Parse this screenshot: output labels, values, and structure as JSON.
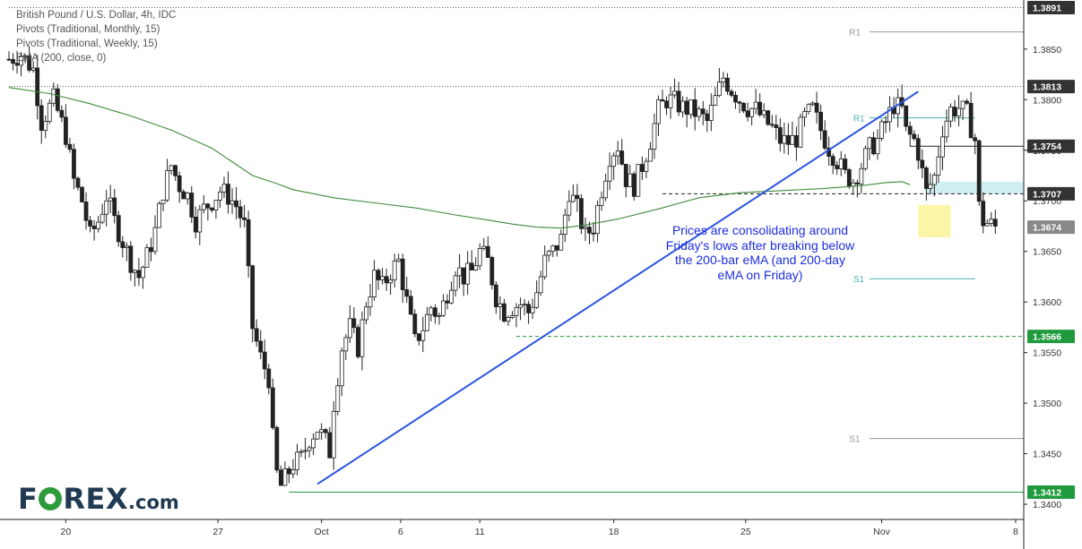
{
  "legend": {
    "line1": "British Pound / U.S. Dollar, 4h, IDC",
    "line2": "Pivots (Traditional, Monthly, 15)",
    "line3": "Pivots (Traditional, Weekly, 15)",
    "line4": "EMA (200, close, 0)"
  },
  "annotation": "Prices are consolidating around Friday's lows after breaking below the 200-bar eMA (and 200-day eMA on Friday)",
  "logo": {
    "text_a": "F",
    "text_b": "REX",
    "suffix": ".com",
    "ring_color": "#2c9b3b"
  },
  "chart_data": {
    "type": "candlestick",
    "y_range": [
      1.3385,
      1.3895
    ],
    "x_range": [
      0,
      250
    ],
    "y_ticks": [
      "1.3850",
      "1.3800",
      "1.3750",
      "1.3700",
      "1.3650",
      "1.3600",
      "1.3550",
      "1.3500",
      "1.3450",
      "1.3400"
    ],
    "x_ticks": [
      {
        "label": "20",
        "x": 14
      },
      {
        "label": "27",
        "x": 51.5
      },
      {
        "label": "Oct",
        "x": 77
      },
      {
        "label": "6",
        "x": 96.5
      },
      {
        "label": "11",
        "x": 116
      },
      {
        "label": "18",
        "x": 149
      },
      {
        "label": "25",
        "x": 181.5
      },
      {
        "label": "Nov",
        "x": 215
      },
      {
        "label": "8",
        "x": 248
      }
    ],
    "price_tags": [
      {
        "label": "1.3891",
        "value": 1.3891,
        "color": "#333333"
      },
      {
        "label": "1.3813",
        "value": 1.3813,
        "color": "#333333"
      },
      {
        "label": "1.3754",
        "value": 1.3754,
        "color": "#333333"
      },
      {
        "label": "1.3707",
        "value": 1.3707,
        "color": "#333333"
      },
      {
        "label": "1.3674",
        "value": 1.3674,
        "color": "#888888"
      },
      {
        "label": "1.3566",
        "value": 1.3566,
        "color": "#1f9a3c"
      },
      {
        "label": "1.3412",
        "value": 1.3412,
        "color": "#1f9a3c"
      }
    ],
    "pivot_labels": [
      {
        "label": "R1",
        "value": 1.3867,
        "x": 207,
        "color": "#999999"
      },
      {
        "label": "R1",
        "value": 1.3782,
        "x": 208,
        "color": "#4cb2b2"
      },
      {
        "label": "S1",
        "value": 1.3623,
        "x": 208,
        "color": "#4cb2b2"
      },
      {
        "label": "S1",
        "value": 1.3465,
        "x": 207,
        "color": "#999999"
      }
    ],
    "series_points": {
      "close_path": [
        [
          0,
          1.384
        ],
        [
          3,
          1.3845
        ],
        [
          6,
          1.383
        ],
        [
          8,
          1.3778
        ],
        [
          11,
          1.38
        ],
        [
          14,
          1.3765
        ],
        [
          16,
          1.372
        ],
        [
          18,
          1.37
        ],
        [
          20,
          1.3665
        ],
        [
          22,
          1.368
        ],
        [
          24,
          1.3705
        ],
        [
          26,
          1.368
        ],
        [
          28,
          1.366
        ],
        [
          30,
          1.364
        ],
        [
          32,
          1.3625
        ],
        [
          34,
          1.3645
        ],
        [
          36,
          1.367
        ],
        [
          38,
          1.371
        ],
        [
          40,
          1.3735
        ],
        [
          42,
          1.3715
        ],
        [
          44,
          1.3705
        ],
        [
          46,
          1.368
        ],
        [
          48,
          1.3692
        ],
        [
          50,
          1.37
        ],
        [
          52,
          1.371
        ],
        [
          54,
          1.3705
        ],
        [
          56,
          1.3695
        ],
        [
          58,
          1.3675
        ],
        [
          60,
          1.3575
        ],
        [
          62,
          1.3545
        ],
        [
          64,
          1.3525
        ],
        [
          65,
          1.3465
        ],
        [
          66,
          1.343
        ],
        [
          67,
          1.3418
        ],
        [
          68,
          1.3425
        ],
        [
          70,
          1.344
        ],
        [
          72,
          1.3445
        ],
        [
          74,
          1.3465
        ],
        [
          76,
          1.3475
        ],
        [
          78,
          1.3462
        ],
        [
          79,
          1.3452
        ],
        [
          80,
          1.35
        ],
        [
          82,
          1.3555
        ],
        [
          84,
          1.3575
        ],
        [
          86,
          1.3555
        ],
        [
          88,
          1.36
        ],
        [
          90,
          1.3625
        ],
        [
          92,
          1.3615
        ],
        [
          94,
          1.363
        ],
        [
          96,
          1.364
        ],
        [
          98,
          1.36
        ],
        [
          100,
          1.356
        ],
        [
          102,
          1.3575
        ],
        [
          104,
          1.3595
        ],
        [
          106,
          1.3585
        ],
        [
          108,
          1.361
        ],
        [
          110,
          1.3635
        ],
        [
          112,
          1.3625
        ],
        [
          114,
          1.363
        ],
        [
          116,
          1.365
        ],
        [
          118,
          1.364
        ],
        [
          120,
          1.3605
        ],
        [
          122,
          1.359
        ],
        [
          124,
          1.3595
        ],
        [
          126,
          1.3598
        ],
        [
          128,
          1.359
        ],
        [
          130,
          1.361
        ],
        [
          132,
          1.364
        ],
        [
          134,
          1.365
        ],
        [
          136,
          1.3662
        ],
        [
          138,
          1.371
        ],
        [
          140,
          1.3692
        ],
        [
          142,
          1.3665
        ],
        [
          144,
          1.3675
        ],
        [
          146,
          1.3712
        ],
        [
          148,
          1.3745
        ],
        [
          150,
          1.3755
        ],
        [
          152,
          1.3722
        ],
        [
          154,
          1.3715
        ],
        [
          156,
          1.3735
        ],
        [
          158,
          1.376
        ],
        [
          160,
          1.379
        ],
        [
          162,
          1.38
        ],
        [
          164,
          1.3798
        ],
        [
          166,
          1.3792
        ],
        [
          168,
          1.379
        ],
        [
          170,
          1.3785
        ],
        [
          172,
          1.3778
        ],
        [
          174,
          1.38
        ],
        [
          176,
          1.3822
        ],
        [
          178,
          1.381
        ],
        [
          180,
          1.38
        ],
        [
          182,
          1.3792
        ],
        [
          184,
          1.379
        ],
        [
          186,
          1.378
        ],
        [
          188,
          1.3772
        ],
        [
          190,
          1.376
        ],
        [
          192,
          1.3758
        ],
        [
          194,
          1.3762
        ],
        [
          196,
          1.3782
        ],
        [
          198,
          1.379
        ],
        [
          200,
          1.377
        ],
        [
          202,
          1.3752
        ],
        [
          204,
          1.374
        ],
        [
          206,
          1.3725
        ],
        [
          208,
          1.372
        ],
        [
          210,
          1.3735
        ],
        [
          212,
          1.3752
        ],
        [
          214,
          1.376
        ],
        [
          216,
          1.3778
        ],
        [
          218,
          1.3795
        ],
        [
          220,
          1.379
        ],
        [
          221,
          1.3768
        ],
        [
          223,
          1.376
        ],
        [
          224,
          1.3748
        ],
        [
          226,
          1.3708
        ],
        [
          228,
          1.3724
        ],
        [
          230,
          1.3772
        ],
        [
          232,
          1.379
        ],
        [
          234,
          1.3792
        ],
        [
          236,
          1.3786
        ],
        [
          238,
          1.376
        ],
        [
          239,
          1.3694
        ],
        [
          240,
          1.368
        ],
        [
          242,
          1.3676
        ],
        [
          243,
          1.3674
        ]
      ],
      "ema_200": [
        [
          0,
          1.3812
        ],
        [
          10,
          1.3806
        ],
        [
          20,
          1.3796
        ],
        [
          30,
          1.3784
        ],
        [
          40,
          1.377
        ],
        [
          50,
          1.3752
        ],
        [
          60,
          1.3725
        ],
        [
          66,
          1.3717
        ],
        [
          70,
          1.3711
        ],
        [
          80,
          1.3703
        ],
        [
          90,
          1.3698
        ],
        [
          100,
          1.3693
        ],
        [
          110,
          1.3686
        ],
        [
          118,
          1.3681
        ],
        [
          124,
          1.3677
        ],
        [
          130,
          1.3674
        ],
        [
          136,
          1.3673
        ],
        [
          142,
          1.3676
        ],
        [
          150,
          1.3682
        ],
        [
          160,
          1.3692
        ],
        [
          170,
          1.3703
        ],
        [
          180,
          1.3708
        ],
        [
          190,
          1.371
        ],
        [
          200,
          1.3712
        ],
        [
          210,
          1.3715
        ],
        [
          216,
          1.3718
        ],
        [
          220,
          1.3719
        ],
        [
          222,
          1.3716
        ]
      ]
    },
    "trendline": {
      "from": [
        76,
        1.342
      ],
      "to": [
        224,
        1.3808
      ]
    },
    "levels": [
      {
        "value": 1.3891,
        "style": "dotted",
        "from": 0,
        "to": 250
      },
      {
        "value": 1.3813,
        "style": "dotted",
        "from": 0,
        "to": 250
      },
      {
        "value": 1.3867,
        "style": "solid",
        "from": 212,
        "to": 250
      },
      {
        "value": 1.3782,
        "style": "solid",
        "from": 212,
        "to": 238
      },
      {
        "value": 1.3754,
        "style": "solid",
        "from": 222,
        "to": 250
      },
      {
        "value": 1.3707,
        "style": "dashed",
        "from": 161,
        "to": 250
      },
      {
        "value": 1.3623,
        "style": "solid",
        "from": 212,
        "to": 238
      },
      {
        "value": 1.3566,
        "style": "dashed",
        "from": 125,
        "to": 250
      },
      {
        "value": 1.3465,
        "style": "solid",
        "from": 212,
        "to": 250
      },
      {
        "value": 1.3412,
        "style": "solid",
        "from": 69,
        "to": 250
      }
    ],
    "zones": [
      {
        "from_x": 226,
        "to_x": 250,
        "y_top": 1.3719,
        "y_bottom": 1.3707,
        "color": "#cfeef0"
      },
      {
        "from_x": 224,
        "to_x": 232,
        "y_top": 1.3696,
        "y_bottom": 1.3664,
        "color": "#fbf5a8"
      }
    ]
  }
}
